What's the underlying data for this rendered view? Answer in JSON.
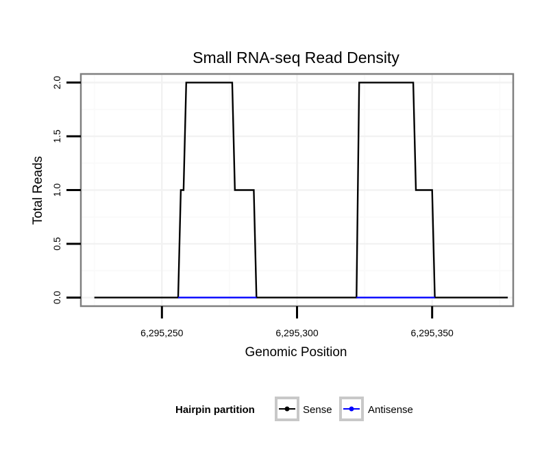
{
  "chart_data": {
    "type": "line",
    "title": "Small RNA-seq Read Density",
    "xlabel": "Genomic Position",
    "ylabel": "Total Reads",
    "xlim": [
      6295220,
      6295380
    ],
    "ylim": [
      -0.08,
      2.08
    ],
    "x_ticks": [
      6295250,
      6295300,
      6295350
    ],
    "x_tick_labels": [
      "6,295,250",
      "6,295,300",
      "6,295,350"
    ],
    "y_ticks": [
      0,
      0.5,
      1,
      1.5,
      2
    ],
    "y_tick_labels": [
      "0.0",
      "0.5",
      "1.0",
      "1.5",
      "2.0"
    ],
    "grid": true,
    "legend_position": "bottom",
    "legend_title": "Hairpin partition",
    "series": [
      {
        "name": "Sense",
        "color": "#000000",
        "x": [
          6295225,
          6295256,
          6295257,
          6295258,
          6295259,
          6295260,
          6295276,
          6295277,
          6295284,
          6295285,
          6295322,
          6295323,
          6295343,
          6295344,
          6295350,
          6295351,
          6295378
        ],
        "y": [
          0,
          0,
          1,
          1,
          2,
          2,
          2,
          1,
          1,
          0,
          0,
          2,
          2,
          1,
          1,
          0,
          0
        ]
      },
      {
        "name": "Antisense",
        "color": "#0000ff",
        "x": [
          6295256,
          6295285,
          6295322,
          6295351
        ],
        "y": [
          0,
          0,
          0,
          0
        ]
      }
    ]
  }
}
